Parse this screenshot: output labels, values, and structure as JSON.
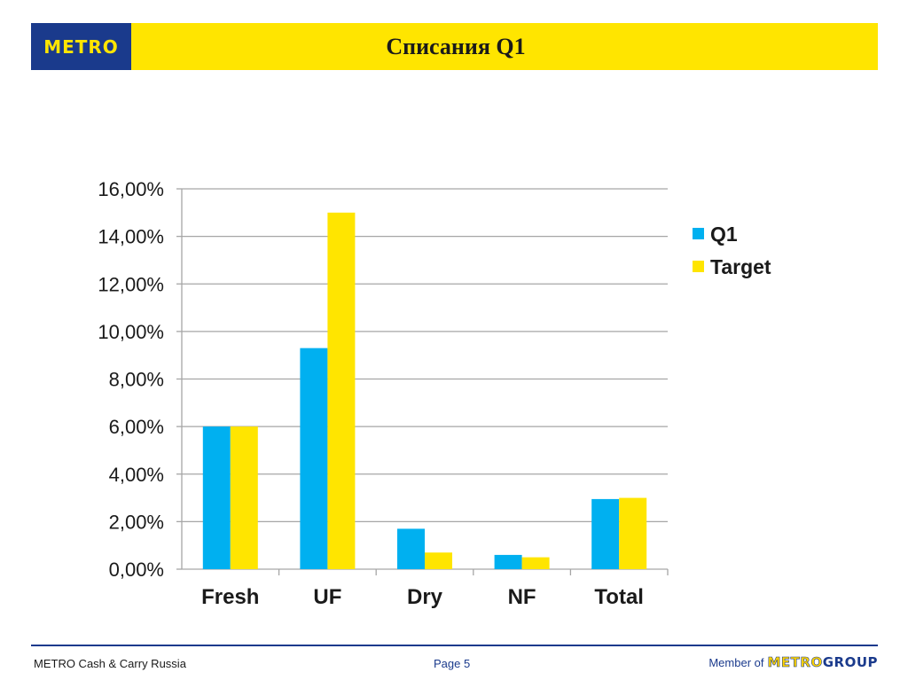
{
  "header": {
    "logo_text": "METRO",
    "title": "Списания Q1",
    "colors": {
      "bar": "#ffe500",
      "logo_bg": "#1a3a8c",
      "logo_text": "#ffe500"
    }
  },
  "chart_data": {
    "type": "bar",
    "title": "",
    "xlabel": "",
    "ylabel": "",
    "categories": [
      "Fresh",
      "UF",
      "Dry",
      "NF",
      "Total"
    ],
    "series": [
      {
        "name": "Q1",
        "color": "#00b0f0",
        "values": [
          6.0,
          9.3,
          1.7,
          0.6,
          2.95
        ]
      },
      {
        "name": "Target",
        "color": "#ffe500",
        "values": [
          6.0,
          15.0,
          0.7,
          0.5,
          3.0
        ]
      }
    ],
    "ylim": [
      0,
      16
    ],
    "yticks": [
      "0,00%",
      "2,00%",
      "4,00%",
      "6,00%",
      "8,00%",
      "10,00%",
      "12,00%",
      "14,00%",
      "16,00%"
    ],
    "grid": true,
    "legend": "right"
  },
  "footer": {
    "left": "METRO Cash & Carry Russia",
    "center": "Page 5",
    "member_of": "Member of",
    "group_logo_metro": "METRO",
    "group_logo_group": "GROUP"
  }
}
